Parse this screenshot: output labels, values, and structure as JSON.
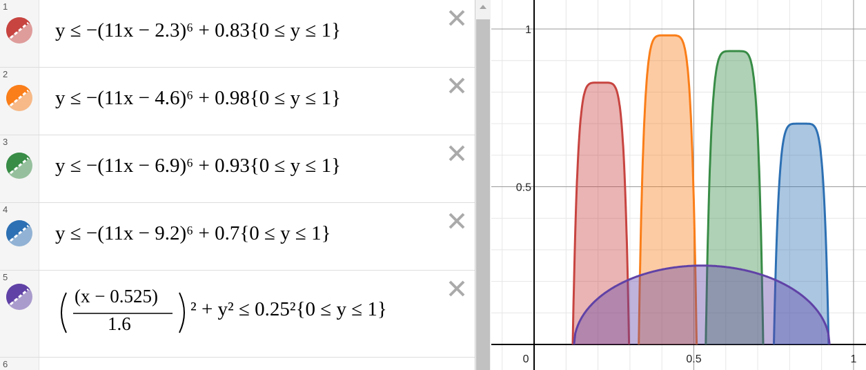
{
  "expressions": [
    {
      "index": "1",
      "color": "#c74440",
      "latex": "y ≤ −(11x − 2.3)⁶ + 0.83{0 ≤ y ≤ 1}"
    },
    {
      "index": "2",
      "color": "#fa7e19",
      "latex": "y ≤ −(11x − 4.6)⁶ + 0.98{0 ≤ y ≤ 1}"
    },
    {
      "index": "3",
      "color": "#388c46",
      "latex": "y ≤ −(11x − 6.9)⁶ + 0.93{0 ≤ y ≤ 1}"
    },
    {
      "index": "4",
      "color": "#2d70b3",
      "latex": "y ≤ −(11x − 9.2)⁶ + 0.7{0 ≤ y ≤ 1}"
    },
    {
      "index": "5",
      "color": "#6042a6",
      "numerator": "(x − 0.525)",
      "denominator": "1.6",
      "tail": "² + y² ≤ 0.25²{0 ≤ y ≤ 1}"
    }
  ],
  "next_index": "6",
  "graph": {
    "xlim": [
      -0.134,
      1.039
    ],
    "ylim": [
      -0.081,
      1.092
    ],
    "xticks": [
      0,
      0.5,
      1
    ],
    "yticks": [
      0.5,
      1
    ],
    "minor_step": 0.1
  }
}
